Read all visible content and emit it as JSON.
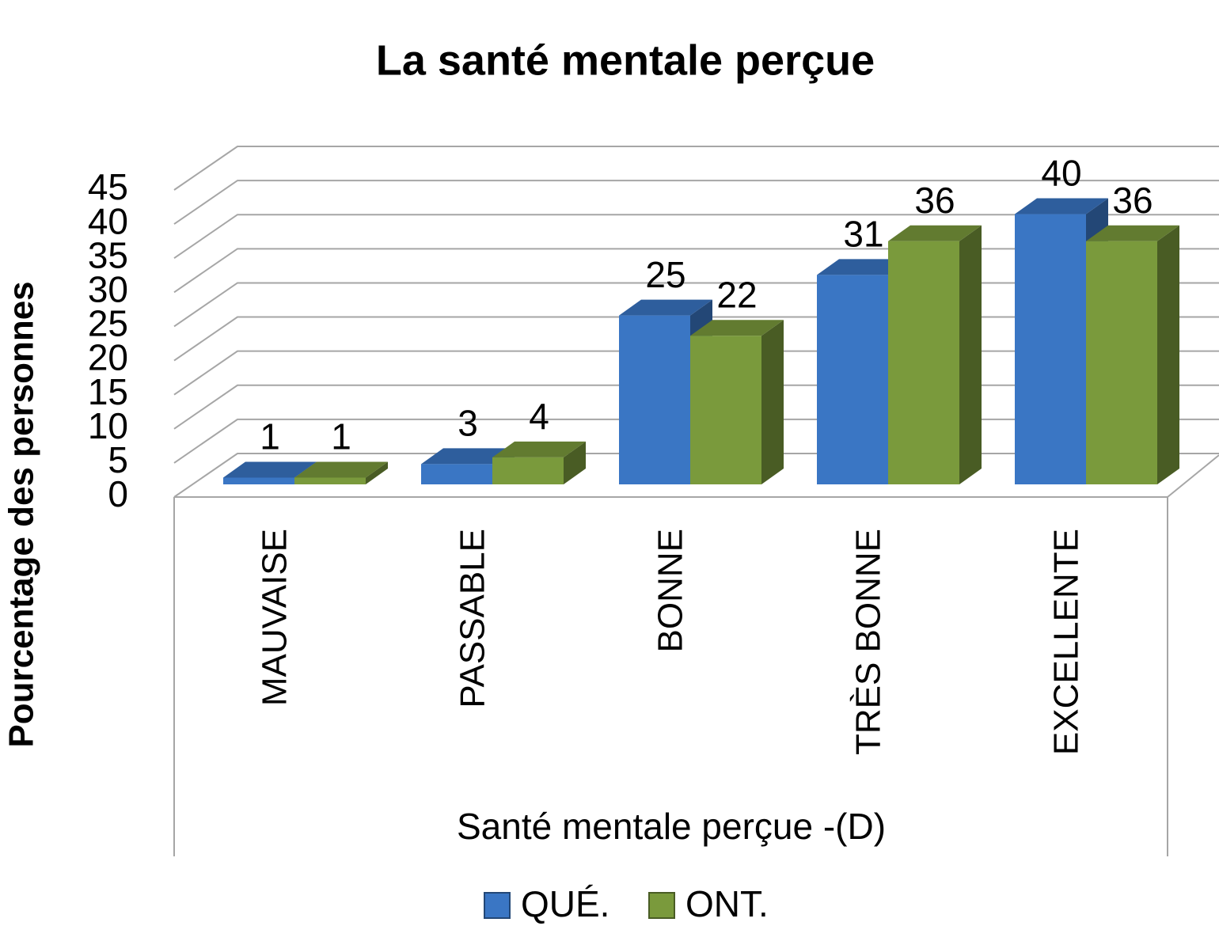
{
  "chart_data": {
    "type": "bar3d",
    "title": "La santé mentale perçue",
    "x_label": "Santé mentale perçue -(D)",
    "y_label": "Pourcentage des personnes",
    "categories": [
      "MAUVAISE",
      "PASSABLE",
      "BONNE",
      "TRÈS BONNE",
      "EXCELLENTE"
    ],
    "series": [
      {
        "name": "QUÉ.",
        "color": "#3a76c4",
        "values": [
          1,
          3,
          25,
          31,
          40
        ]
      },
      {
        "name": "ONT.",
        "color": "#7a9a3c",
        "values": [
          1,
          4,
          22,
          36,
          36
        ]
      }
    ],
    "ylim": [
      0,
      45
    ],
    "yticks": [
      0,
      5,
      10,
      15,
      20,
      25,
      30,
      35,
      40,
      45
    ],
    "grid": true,
    "legend": "bottom"
  }
}
